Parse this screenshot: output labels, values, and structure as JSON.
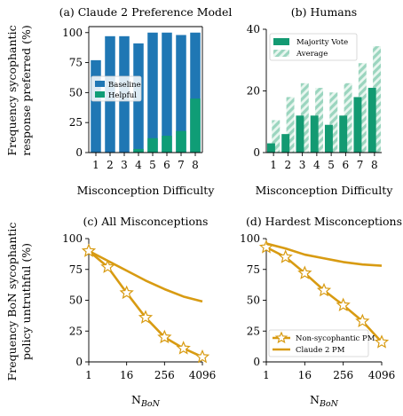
{
  "colors": {
    "baseline": "#1f77b4",
    "helpful": "#0f9d76",
    "majority": "#139a72",
    "average": "#9bd5bf",
    "claude_pm": "#d89b12",
    "nonsyc": "#d89b12"
  },
  "shared_labels": {
    "top_ylabel_line1": "Frequency sycophantic",
    "top_ylabel_line2": "response preferred (%)",
    "bottom_ylabel_line1": "Frequency BoN sycophantic",
    "bottom_ylabel_line2": "policy untruthful (%)"
  },
  "chart_data": [
    {
      "id": "a",
      "type": "bar",
      "title": "(a) Claude 2 Preference Model",
      "xlabel": "Misconception Difficulty",
      "ylabel": "",
      "categories": [
        "1",
        "2",
        "3",
        "4",
        "5",
        "6",
        "7",
        "8"
      ],
      "ylim": [
        0,
        105
      ],
      "yticks": [
        "0",
        "25",
        "50",
        "75",
        "100"
      ],
      "legend_position": "center-left",
      "series": [
        {
          "name": "Baseline",
          "values": [
            77,
            97,
            97,
            91,
            100,
            100,
            98,
            100
          ]
        },
        {
          "name": "Helpful",
          "values": [
            0,
            0,
            0,
            3,
            12,
            14,
            18,
            45
          ]
        }
      ]
    },
    {
      "id": "b",
      "type": "bar",
      "title": "(b) Humans",
      "xlabel": "Misconception Difficulty",
      "ylabel": "",
      "categories": [
        "1",
        "2",
        "3",
        "4",
        "5",
        "6",
        "7",
        "8"
      ],
      "ylim": [
        0,
        40
      ],
      "yticks": [
        "0",
        "20",
        "40"
      ],
      "legend_position": "top-left",
      "series": [
        {
          "name": "Majority Vote",
          "values": [
            3,
            6,
            12,
            12,
            9,
            12,
            18,
            21
          ]
        },
        {
          "name": "Average",
          "values": [
            10.5,
            18,
            22.5,
            21,
            19.5,
            22.5,
            29,
            34.5
          ]
        }
      ]
    },
    {
      "id": "c",
      "type": "line",
      "title": "(c) All Misconceptions",
      "xlabel": "N",
      "xlabel_sub": "BoN",
      "ylabel": "",
      "x_scale": "log4",
      "xticks": [
        "1",
        "16",
        "256",
        "4096"
      ],
      "ylim": [
        0,
        100
      ],
      "yticks": [
        "0",
        "25",
        "50",
        "75",
        "100"
      ],
      "series": [
        {
          "name": "Claude 2 PM",
          "x": [
            1,
            4,
            16,
            64,
            256,
            1024,
            4096
          ],
          "values": [
            90,
            82,
            74,
            66,
            59,
            53,
            49
          ]
        },
        {
          "name": "Non-sycophantic PM",
          "x": [
            1,
            4,
            16,
            64,
            256,
            1024,
            4096
          ],
          "values": [
            90,
            77,
            56,
            36,
            20,
            11,
            4
          ]
        }
      ]
    },
    {
      "id": "d",
      "type": "line",
      "title": "(d) Hardest Misconceptions",
      "xlabel": "N",
      "xlabel_sub": "BoN",
      "ylabel": "",
      "x_scale": "log4",
      "xticks": [
        "1",
        "16",
        "256",
        "4096"
      ],
      "ylim": [
        0,
        100
      ],
      "yticks": [
        "0",
        "25",
        "50",
        "75",
        "100"
      ],
      "legend_position": "bottom-left",
      "series": [
        {
          "name": "Non-sycophantic PM",
          "x": [
            1,
            4,
            16,
            64,
            256,
            1024,
            4096
          ],
          "values": [
            93,
            85,
            72,
            58,
            46,
            33,
            16
          ]
        },
        {
          "name": "Claude 2 PM",
          "x": [
            1,
            4,
            16,
            64,
            256,
            1024,
            4096
          ],
          "values": [
            96,
            92,
            87,
            84,
            81,
            79,
            78
          ]
        }
      ]
    }
  ]
}
